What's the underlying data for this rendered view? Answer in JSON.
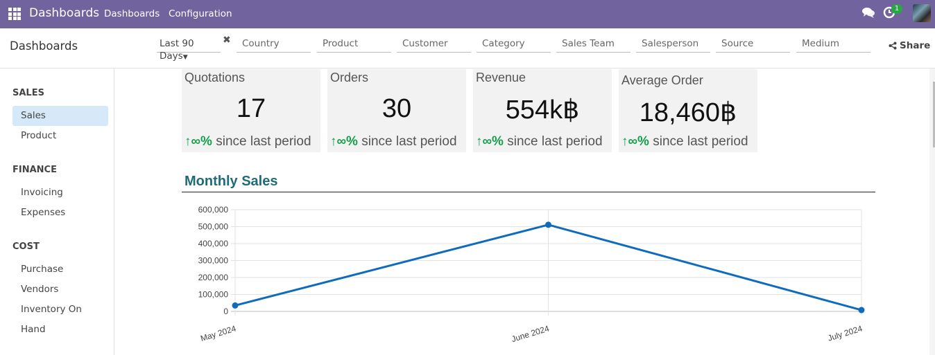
{
  "navbar": {
    "app_name": "Dashboards",
    "menus": [
      "Dashboards",
      "Configuration"
    ],
    "icons": {
      "apps": "apps-grid-icon",
      "chat": "chat-icon",
      "activity": "clock-icon"
    },
    "activity_badge": "1"
  },
  "controlbar": {
    "title": "Dashboards",
    "date_filter": "Last 90 Days",
    "filters": [
      "Country",
      "Product",
      "Customer",
      "Category",
      "Sales Team",
      "Salesperson",
      "Source",
      "Medium"
    ],
    "share_label": "Share"
  },
  "sidebar": {
    "sections": [
      {
        "title": "SALES",
        "items": [
          {
            "label": "Sales",
            "active": true
          },
          {
            "label": "Product",
            "active": false
          }
        ]
      },
      {
        "title": "FINANCE",
        "items": [
          {
            "label": "Invoicing",
            "active": false
          },
          {
            "label": "Expenses",
            "active": false
          }
        ]
      },
      {
        "title": "COST",
        "items": [
          {
            "label": "Purchase",
            "active": false
          },
          {
            "label": "Vendors",
            "active": false
          },
          {
            "label": "Inventory On Hand",
            "active": false
          }
        ]
      }
    ]
  },
  "kpis": [
    {
      "title": "Quotations",
      "value": "17",
      "trend_icon": "↑",
      "change": "∞%",
      "suffix": "since last period"
    },
    {
      "title": "Orders",
      "value": "30",
      "trend_icon": "↑",
      "change": "∞%",
      "suffix": "since last period"
    },
    {
      "title": "Revenue",
      "value": "554k฿",
      "trend_icon": "↑",
      "change": "∞%",
      "suffix": "since last period"
    },
    {
      "title": "Average Order",
      "value": "18,460฿",
      "trend_icon": "↑",
      "change": "∞%",
      "suffix": "since last period"
    }
  ],
  "colors": {
    "navbar": "#71639e",
    "accent_line": "#0f6cbd",
    "positive": "#13a04b",
    "chart_title": "#1f6b78"
  },
  "chart_data": {
    "type": "line",
    "title": "Monthly Sales",
    "categories": [
      "May 2024",
      "June 2024",
      "July 2024"
    ],
    "series": [
      {
        "name": "Sales",
        "values": [
          35000,
          511000,
          8000
        ]
      }
    ],
    "ylim": [
      0,
      600000
    ],
    "yticks": [
      0,
      100000,
      200000,
      300000,
      400000,
      500000,
      600000
    ],
    "ytick_labels": [
      "0",
      "100,000",
      "200,000",
      "300,000",
      "400,000",
      "500,000",
      "600,000"
    ],
    "xlabel": "",
    "ylabel": "",
    "grid": true
  }
}
